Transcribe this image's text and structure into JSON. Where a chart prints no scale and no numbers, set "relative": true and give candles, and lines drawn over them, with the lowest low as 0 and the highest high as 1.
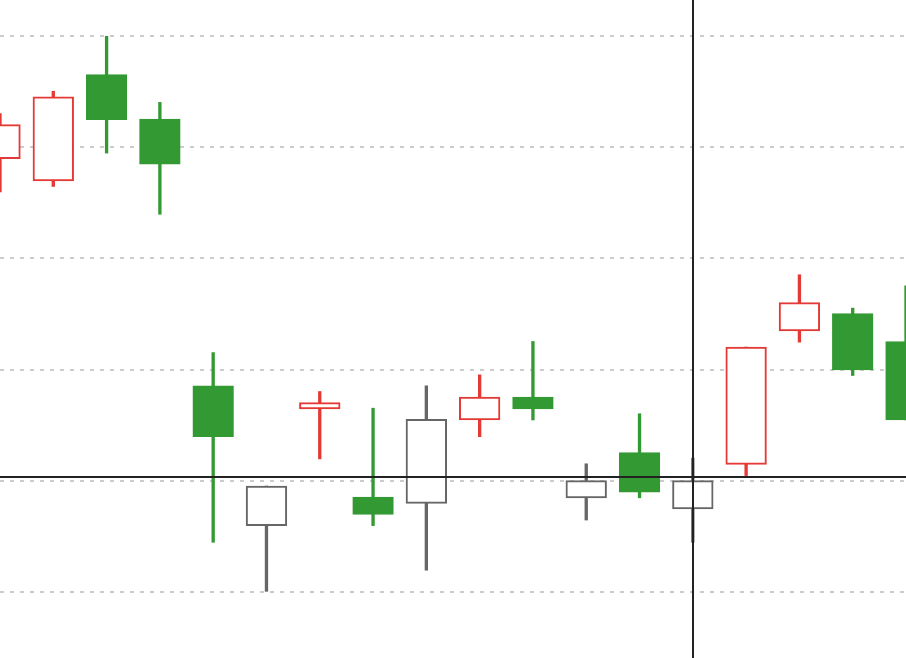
{
  "chart_data": {
    "type": "candlestick",
    "relative": true,
    "grid": "y",
    "ref_lines": [
      {
        "axis": "y",
        "value": 0.21,
        "color": "#222222"
      }
    ],
    "categories": [
      null,
      null,
      null,
      null,
      null,
      null,
      null,
      null,
      null,
      null,
      null,
      null,
      null,
      null,
      null,
      null,
      null,
      null
    ],
    "ohlc": [
      [
        0.78,
        0.86,
        0.72,
        0.84
      ],
      [
        0.74,
        0.9,
        0.73,
        0.89
      ],
      [
        0.93,
        1,
        0.79,
        0.85
      ],
      [
        0.85,
        0.88,
        0.68,
        0.77
      ],
      [
        0.37,
        0.43,
        0.09,
        0.28
      ],
      [
        0.12,
        0.19,
        0,
        0.19
      ],
      [
        0.33,
        0.36,
        0.24,
        0.34
      ],
      [
        0.17,
        0.33,
        0.12,
        0.14
      ],
      [
        0.16,
        0.37,
        0.04,
        0.31
      ],
      [
        0.31,
        0.39,
        0.28,
        0.35
      ],
      [
        0.35,
        0.45,
        0.31,
        0.33
      ],
      [
        0.17,
        0.23,
        0.13,
        0.2
      ],
      [
        0.25,
        0.32,
        0.17,
        0.18
      ],
      [
        0.15,
        0.24,
        0.09,
        0.2
      ],
      [
        0.23,
        0.44,
        0.21,
        0.44
      ],
      [
        0.47,
        0.57,
        0.45,
        0.52
      ],
      [
        0.5,
        0.51,
        0.39,
        0.4
      ],
      [
        0.45,
        0.55,
        0.31,
        0.31
      ]
    ],
    "colors": [
      "#e53935",
      "#e53935",
      "#339933",
      "#339933",
      "#339933",
      "#666666",
      "#e53935",
      "#339933",
      "#666666",
      "#e53935",
      "#339933",
      "#666666",
      "#339933",
      "#666666",
      "#e53935",
      "#e53935",
      "#339933",
      "#339933"
    ]
  }
}
